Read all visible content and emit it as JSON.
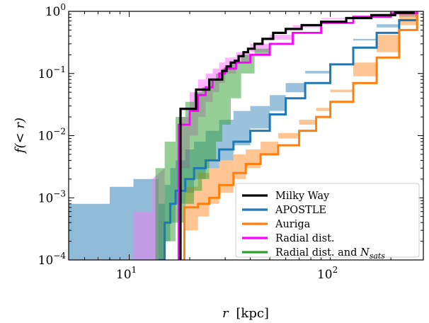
{
  "chart_data": {
    "type": "line",
    "xlabel": "r [kpc]",
    "ylabel": "f(< r)",
    "x_scale": "log",
    "y_scale": "log",
    "xlim": [
      5,
      290
    ],
    "ylim": [
      0.0001,
      1
    ],
    "x_ticks": [
      {
        "value": 10,
        "label": "10",
        "exp": "1"
      },
      {
        "value": 100,
        "label": "10",
        "exp": "2"
      }
    ],
    "y_ticks": [
      {
        "value": 0.0001,
        "label": "10",
        "exp": "−4"
      },
      {
        "value": 0.001,
        "label": "10",
        "exp": "−3"
      },
      {
        "value": 0.01,
        "label": "10",
        "exp": "−2"
      },
      {
        "value": 0.1,
        "label": "10",
        "exp": "−1"
      },
      {
        "value": 1,
        "label": "10",
        "exp": "0"
      }
    ],
    "grid": false,
    "legend_position": "bottom-right",
    "series": [
      {
        "name": "Milky Way",
        "color": "#000000",
        "kind": "step",
        "x": [
          18.0,
          18.0,
          20.0,
          21.5,
          23.0,
          25.0,
          27.0,
          29.0,
          30.5,
          32.0,
          33.5,
          35.0,
          37.0,
          39.0,
          42.0,
          46.0,
          52.0,
          60.0,
          72.0,
          90.0,
          120.0,
          160.0,
          210.0,
          260.0
        ],
        "y": [
          0.0001,
          0.027,
          0.027,
          0.055,
          0.055,
          0.08,
          0.08,
          0.11,
          0.13,
          0.15,
          0.16,
          0.19,
          0.22,
          0.25,
          0.3,
          0.36,
          0.45,
          0.52,
          0.6,
          0.68,
          0.78,
          0.87,
          0.95,
          1.0
        ]
      },
      {
        "name": "APOSTLE",
        "color": "#1f77b4",
        "kind": "line",
        "x": [
          14,
          15,
          16,
          17,
          19,
          21,
          24,
          28,
          33,
          40,
          50,
          60,
          75,
          100,
          130,
          170,
          220,
          270
        ],
        "y": [
          0.0001,
          0.0004,
          0.0008,
          0.0013,
          0.002,
          0.003,
          0.004,
          0.006,
          0.008,
          0.012,
          0.022,
          0.04,
          0.07,
          0.14,
          0.26,
          0.45,
          0.72,
          1.0
        ],
        "band_lower": [
          0.0001,
          0.0001,
          0.0002,
          0.0004,
          0.0008,
          0.0012,
          0.002,
          0.003,
          0.004,
          0.007,
          0.013,
          0.025,
          0.05,
          0.1,
          0.2,
          0.36,
          0.62,
          0.95
        ],
        "band_upper": [
          0.0008,
          0.0016,
          0.003,
          0.004,
          0.006,
          0.008,
          0.012,
          0.018,
          0.025,
          0.03,
          0.045,
          0.07,
          0.11,
          0.2,
          0.34,
          0.55,
          0.82,
          1.0
        ]
      },
      {
        "name": "Auriga",
        "color": "#ff7f0e",
        "kind": "line",
        "x": [
          18.5,
          18.8,
          22,
          25,
          28,
          33,
          38,
          45,
          55,
          70,
          85,
          100,
          130,
          170,
          220,
          270
        ],
        "y": [
          0.0001,
          0.0007,
          0.0008,
          0.001,
          0.0016,
          0.0025,
          0.0035,
          0.005,
          0.007,
          0.012,
          0.02,
          0.035,
          0.07,
          0.18,
          0.5,
          1.0
        ],
        "band_lower": [
          0.0001,
          0.0001,
          0.0003,
          0.0005,
          0.0008,
          0.0012,
          0.002,
          0.003,
          0.005,
          0.009,
          0.015,
          0.025,
          0.055,
          0.15,
          0.42,
          0.95
        ],
        "band_upper": [
          0.0001,
          0.0015,
          0.0025,
          0.003,
          0.004,
          0.005,
          0.006,
          0.008,
          0.011,
          0.018,
          0.028,
          0.05,
          0.09,
          0.22,
          0.6,
          1.0
        ]
      },
      {
        "name": "Radial dist.",
        "color": "#ff00ff",
        "kind": "line",
        "x": [
          17.5,
          17.6,
          20,
          22,
          24,
          26,
          28,
          30,
          34,
          40,
          50,
          65,
          90,
          130,
          200,
          270
        ],
        "y": [
          0.0001,
          0.015,
          0.025,
          0.045,
          0.06,
          0.08,
          0.1,
          0.12,
          0.15,
          0.2,
          0.3,
          0.45,
          0.65,
          0.82,
          0.93,
          1.0
        ],
        "band_lower": [
          0.0001,
          0.0001,
          0.003,
          0.01,
          0.02,
          0.035,
          0.05,
          0.07,
          0.1,
          0.15,
          0.22,
          0.35,
          0.55,
          0.75,
          0.9,
          0.98
        ],
        "band_upper": [
          0.002,
          0.02,
          0.05,
          0.08,
          0.1,
          0.12,
          0.15,
          0.18,
          0.22,
          0.3,
          0.42,
          0.6,
          0.78,
          0.9,
          0.97,
          1.0
        ]
      },
      {
        "name": "Radial dist. and N_sats",
        "color": "#2ca02c",
        "kind": "band",
        "x": [
          13.5,
          15,
          17,
          19,
          21,
          23,
          25,
          27,
          29,
          32,
          36,
          42,
          50,
          60
        ],
        "band_lower": [
          0.0001,
          0.0001,
          0.0002,
          0.0004,
          0.0008,
          0.0013,
          0.002,
          0.004,
          0.008,
          0.015,
          0.04,
          0.1,
          0.2,
          0.3
        ],
        "band_upper": [
          0.003,
          0.008,
          0.02,
          0.035,
          0.05,
          0.06,
          0.08,
          0.1,
          0.12,
          0.15,
          0.2,
          0.25,
          0.3,
          0.32
        ]
      },
      {
        "name": "band-extents",
        "kind": "background",
        "apostle_band_left": {
          "x": [
            5,
            8,
            8,
            10.5,
            10.5,
            14
          ],
          "y": [
            0.0008,
            0.0008,
            0.0015,
            0.0015,
            0.002,
            0.002
          ]
        },
        "radial_band_left": {
          "x": [
            10.5,
            13,
            13,
            15
          ],
          "y": [
            0.0006,
            0.0006,
            0.002,
            0.003
          ]
        }
      }
    ]
  },
  "legend": {
    "entries": [
      {
        "label": "Milky Way",
        "color": "#000000"
      },
      {
        "label": "APOSTLE",
        "color": "#1f77b4"
      },
      {
        "label": "Auriga",
        "color": "#ff7f0e"
      },
      {
        "label": "Radial dist.",
        "color": "#ff00ff"
      },
      {
        "label": "Radial dist. and ",
        "math": "N",
        "math_sub": "sats",
        "color": "#2ca02c"
      }
    ]
  },
  "axis_labels": {
    "x_main": "r",
    "x_unit": "[kpc]",
    "y_main": "f(< r)"
  }
}
